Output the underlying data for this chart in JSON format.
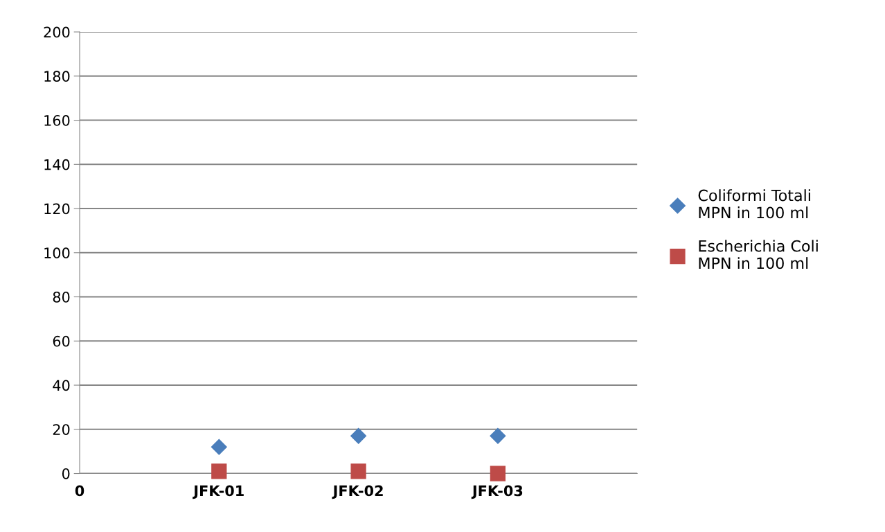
{
  "chart_data": {
    "type": "scatter",
    "categories": [
      "0",
      "JFK-01",
      "JFK-02",
      "JFK-03",
      null
    ],
    "series": [
      {
        "name": "Coliformi Totali\nMPN in 100 ml",
        "color": "#4a7ebb",
        "marker": "diamond",
        "values": [
          null,
          12,
          17,
          17,
          null
        ]
      },
      {
        "name": "Escherichia Coli\nMPN in 100 ml",
        "color": "#be4b48",
        "marker": "square",
        "values": [
          null,
          1,
          1,
          0,
          null
        ]
      }
    ],
    "ylim": [
      0,
      200
    ],
    "yticks": [
      0,
      20,
      40,
      60,
      80,
      100,
      120,
      140,
      160,
      180,
      200
    ],
    "grid": "y",
    "legend": "right"
  }
}
